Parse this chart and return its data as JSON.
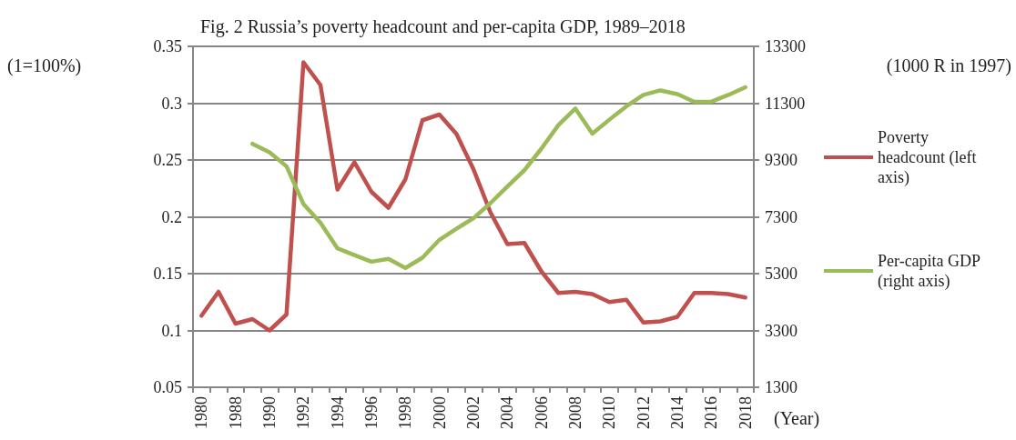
{
  "chart_data": {
    "type": "line",
    "title": "Fig. 2 Russia’s poverty headcount and per-capita GDP, 1989–2018",
    "xlabel": "(Year)",
    "ylabel": "(1=100%)",
    "y2label": "(1000 R in 1997)",
    "categories": [
      "1980",
      null,
      "1988",
      null,
      "1990",
      null,
      "1992",
      null,
      "1994",
      null,
      "1996",
      null,
      "1998",
      null,
      "2000",
      null,
      "2002",
      null,
      "2004",
      null,
      "2006",
      null,
      "2008",
      null,
      "2010",
      null,
      "2012",
      null,
      "2014",
      null,
      "2016",
      null,
      "2018"
    ],
    "series": [
      {
        "name": "Poverty headcount (left axis)",
        "color": "#c0504d",
        "values": [
          0.113,
          0.134,
          0.106,
          0.11,
          0.1,
          0.114,
          0.336,
          0.316,
          0.224,
          0.248,
          0.222,
          0.208,
          0.233,
          0.285,
          0.29,
          0.273,
          0.242,
          0.204,
          0.176,
          0.177,
          0.152,
          0.133,
          0.134,
          0.132,
          0.125,
          0.127,
          0.107,
          0.108,
          0.112,
          0.133,
          0.133,
          0.132,
          0.129
        ]
      },
      {
        "name": "Per-capita GDP (right axis)",
        "color": "#9bbb59",
        "axis": "y2",
        "values": [
          null,
          null,
          null,
          9870,
          9570,
          9080,
          7750,
          7090,
          6190,
          5950,
          5720,
          5820,
          5500,
          5860,
          6490,
          6880,
          7250,
          7780,
          8370,
          8940,
          9700,
          10530,
          11110,
          10230,
          10720,
          11190,
          11590,
          11750,
          11620,
          11350,
          11350,
          11590,
          11860
        ]
      }
    ],
    "ylim": [
      0.05,
      0.35
    ],
    "yticks": [
      0.05,
      0.1,
      0.15,
      0.2,
      0.25,
      0.3,
      0.35
    ],
    "y2lim": [
      1300,
      13300
    ],
    "y2ticks": [
      1300,
      3300,
      5300,
      7300,
      9300,
      11300,
      13300
    ],
    "grid": "y",
    "legend": "right",
    "marker": "none",
    "line_style": "solid"
  }
}
